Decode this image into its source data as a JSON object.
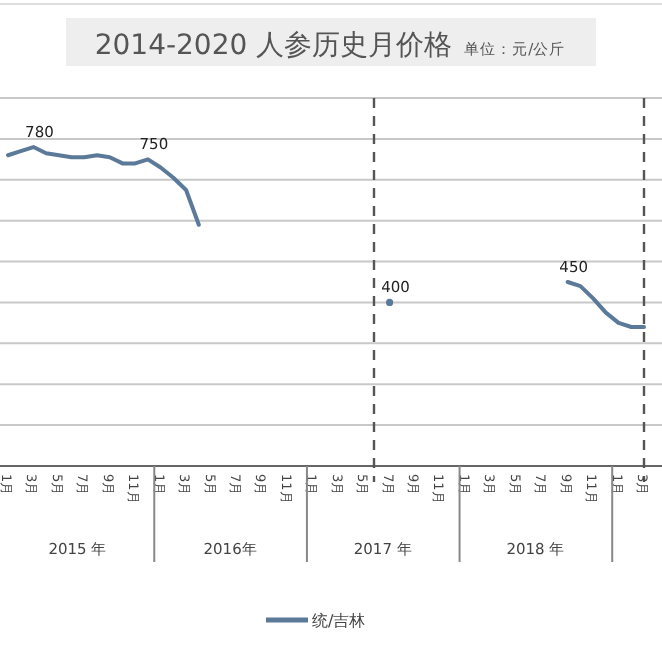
{
  "chart_data": {
    "type": "line",
    "title": "2014-2020 人参历史月价格",
    "subtitle": "单位：元/公斤",
    "categories": [
      "1月",
      null,
      "3月",
      null,
      "5月",
      null,
      "7月",
      null,
      "9月",
      null,
      "11月",
      null,
      "1月",
      null,
      "3月",
      null,
      "5月",
      null,
      "7月",
      null,
      "9月",
      null,
      "11月",
      null,
      "1月",
      null,
      "3月",
      null,
      "5月",
      null,
      "7月",
      null,
      "9月",
      null,
      "11月",
      null,
      "1月",
      null,
      "3月",
      null,
      "5月",
      null,
      "7月",
      null,
      "9月",
      null,
      "11月",
      null,
      "1月",
      null,
      "3月"
    ],
    "series": [
      {
        "name": "统/吉林",
        "color": "#5b7a99",
        "values": [
          760,
          770,
          780,
          765,
          760,
          755,
          755,
          760,
          755,
          740,
          740,
          750,
          730,
          705,
          675,
          590,
          null,
          null,
          null,
          null,
          null,
          null,
          null,
          null,
          null,
          null,
          null,
          null,
          null,
          null,
          400,
          null,
          null,
          null,
          null,
          null,
          null,
          null,
          null,
          null,
          null,
          null,
          null,
          null,
          450,
          440,
          410,
          375,
          350,
          340,
          340
        ],
        "value_labels": [
          null,
          null,
          "780",
          null,
          null,
          null,
          null,
          null,
          null,
          null,
          null,
          "750",
          null,
          null,
          null,
          null,
          null,
          null,
          null,
          null,
          null,
          null,
          null,
          null,
          null,
          null,
          null,
          null,
          null,
          null,
          "400",
          null,
          null,
          null,
          null,
          null,
          null,
          null,
          null,
          null,
          null,
          null,
          null,
          null,
          "450",
          null,
          null,
          null,
          null,
          null,
          null
        ]
      }
    ],
    "ylim": [
      0,
      900
    ],
    "yticks": [
      {
        "value": 0,
        "label": null
      },
      {
        "value": 100,
        "label": null
      },
      {
        "value": 200,
        "label": null
      },
      {
        "value": 300,
        "label": null
      },
      {
        "value": 400,
        "label": null
      },
      {
        "value": 500,
        "label": null
      },
      {
        "value": 600,
        "label": null
      },
      {
        "value": 700,
        "label": null
      },
      {
        "value": 800,
        "label": null
      },
      {
        "value": 900,
        "label": null
      }
    ],
    "grid": "y",
    "legend": "bottom",
    "annotations": [
      "2015 年",
      "2016年",
      "2017 年",
      "2018 年"
    ]
  }
}
